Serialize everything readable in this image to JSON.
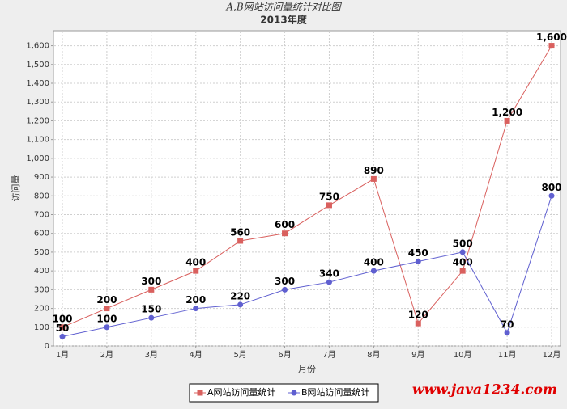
{
  "chart_data": {
    "type": "line",
    "title": "A,B网站访问量统计对比图",
    "subtitle": "2013年度",
    "x_label": "月份",
    "y_label": "访问量",
    "categories": [
      "1月",
      "2月",
      "3月",
      "4月",
      "5月",
      "6月",
      "7月",
      "8月",
      "9月",
      "10月",
      "11月",
      "12月"
    ],
    "series": [
      {
        "name": "A网站访问量统计",
        "color": "#d9605e",
        "marker": "square",
        "values": [
          100,
          200,
          300,
          400,
          560,
          600,
          750,
          890,
          120,
          400,
          1200,
          1600
        ],
        "value_labels": [
          "100",
          "200",
          "300",
          "400",
          "560",
          "600",
          "750",
          "890",
          "120",
          "400",
          "1,200",
          "1,600"
        ]
      },
      {
        "name": "B网站访问量统计",
        "color": "#5f5fd0",
        "marker": "circle",
        "values": [
          50,
          100,
          150,
          200,
          220,
          300,
          340,
          400,
          450,
          500,
          70,
          800
        ]
      }
    ],
    "ylim": [
      0,
      1680
    ],
    "yticks": [
      0,
      100,
      200,
      300,
      400,
      500,
      600,
      700,
      800,
      900,
      {
        "value": 1000,
        "label": "1,000"
      },
      {
        "value": 1100,
        "label": "1,100"
      },
      {
        "value": 1200,
        "label": "1,200"
      },
      {
        "value": 1300,
        "label": "1,300"
      },
      {
        "value": 1400,
        "label": "1,400"
      },
      {
        "value": 1500,
        "label": "1,500"
      },
      {
        "value": 1600,
        "label": "1,600"
      }
    ],
    "grid": true,
    "legend": "bottom",
    "watermark": "www.java1234.com"
  }
}
